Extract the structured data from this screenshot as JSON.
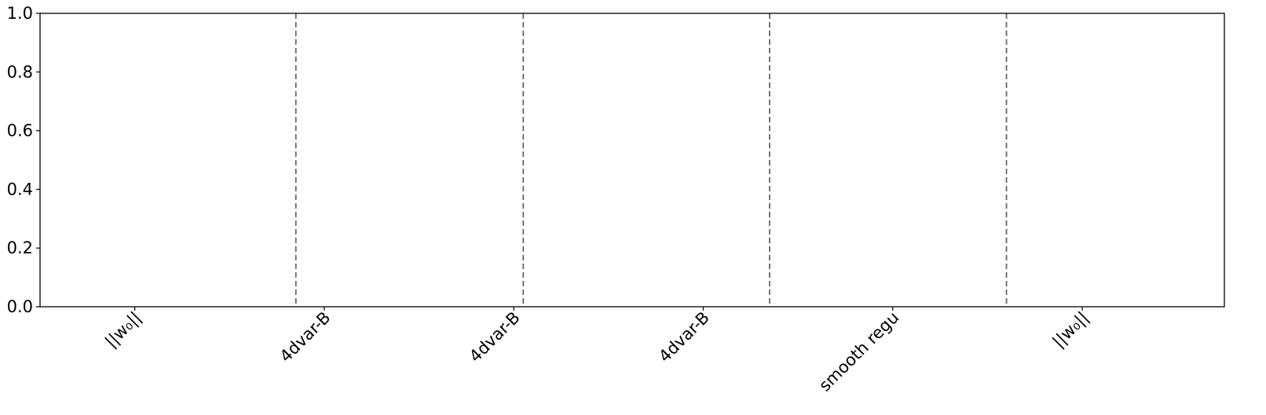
{
  "chart_data": {
    "type": "bar",
    "title": "",
    "xlabel": "",
    "ylabel": "",
    "ylim": [
      0,
      1.0
    ],
    "xlim": [
      -0.5,
      5.75
    ],
    "grid": false,
    "categories": [
      "||w₀||",
      "4dvar-B",
      "4dvar-B",
      "4dvar-B",
      "smooth regu",
      "||w₀||"
    ],
    "category_x": [
      0,
      1,
      2,
      3,
      4,
      5
    ],
    "values": [
      0,
      0,
      0,
      0,
      0,
      0
    ],
    "y_ticks": [
      0.0,
      0.2,
      0.4,
      0.6,
      0.8,
      1.0
    ],
    "y_tick_labels": [
      "0.0",
      "0.2",
      "0.4",
      "0.6",
      "0.8",
      "1.0"
    ],
    "vlines": [
      0.85,
      2.05,
      3.35,
      4.6
    ],
    "vline_style": "dashed",
    "vline_color": "#666666"
  }
}
